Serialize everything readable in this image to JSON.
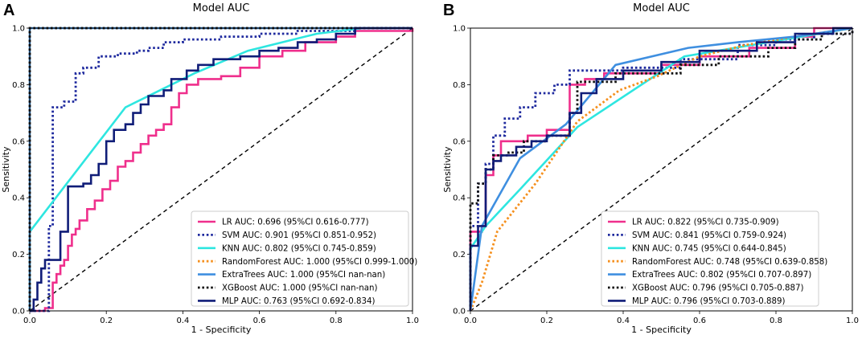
{
  "chart_data": [
    {
      "type": "line",
      "panel_label": "A",
      "title": "Model AUC",
      "xlabel": "1 - Specificity",
      "ylabel": "Sensitivity",
      "xlim": [
        0,
        1
      ],
      "ylim": [
        0,
        1
      ],
      "xticks": [
        "0.0",
        "0.2",
        "0.4",
        "0.6",
        "0.8",
        "1.0"
      ],
      "yticks": [
        "0.0",
        "0.2",
        "0.4",
        "0.6",
        "0.8",
        "1.0"
      ],
      "legend_position": "lower-right",
      "series": [
        {
          "name": "LR",
          "legend": "LR AUC: 0.696 (95%CI 0.616-0.777)",
          "color": "#ef2f8c",
          "dash": "solid",
          "step": true,
          "points": [
            [
              0,
              0
            ],
            [
              0.04,
              0.01
            ],
            [
              0.06,
              0.1
            ],
            [
              0.07,
              0.13
            ],
            [
              0.08,
              0.16
            ],
            [
              0.09,
              0.18
            ],
            [
              0.1,
              0.23
            ],
            [
              0.11,
              0.27
            ],
            [
              0.12,
              0.29
            ],
            [
              0.13,
              0.32
            ],
            [
              0.15,
              0.36
            ],
            [
              0.17,
              0.39
            ],
            [
              0.19,
              0.43
            ],
            [
              0.21,
              0.46
            ],
            [
              0.23,
              0.51
            ],
            [
              0.25,
              0.53
            ],
            [
              0.27,
              0.56
            ],
            [
              0.29,
              0.59
            ],
            [
              0.31,
              0.62
            ],
            [
              0.33,
              0.64
            ],
            [
              0.35,
              0.66
            ],
            [
              0.37,
              0.72
            ],
            [
              0.39,
              0.77
            ],
            [
              0.41,
              0.8
            ],
            [
              0.44,
              0.82
            ],
            [
              0.5,
              0.83
            ],
            [
              0.55,
              0.86
            ],
            [
              0.6,
              0.9
            ],
            [
              0.66,
              0.92
            ],
            [
              0.72,
              0.95
            ],
            [
              0.8,
              0.97
            ],
            [
              0.85,
              0.99
            ],
            [
              1,
              1
            ]
          ]
        },
        {
          "name": "SVM",
          "legend": "SVM AUC: 0.901 (95%CI 0.851-0.952)",
          "color": "#1f2a9e",
          "dash": "dot",
          "step": true,
          "points": [
            [
              0,
              0
            ],
            [
              0.05,
              0.3
            ],
            [
              0.06,
              0.72
            ],
            [
              0.09,
              0.74
            ],
            [
              0.12,
              0.84
            ],
            [
              0.14,
              0.86
            ],
            [
              0.18,
              0.9
            ],
            [
              0.23,
              0.91
            ],
            [
              0.28,
              0.92
            ],
            [
              0.31,
              0.93
            ],
            [
              0.35,
              0.95
            ],
            [
              0.4,
              0.96
            ],
            [
              0.5,
              0.97
            ],
            [
              0.6,
              0.98
            ],
            [
              0.7,
              0.99
            ],
            [
              0.85,
              1
            ],
            [
              1,
              1
            ]
          ]
        },
        {
          "name": "KNN",
          "legend": "KNN AUC: 0.802 (95%CI 0.745-0.859)",
          "color": "#2ee6e0",
          "dash": "solid",
          "step": false,
          "points": [
            [
              0,
              0
            ],
            [
              0,
              0.28
            ],
            [
              0.25,
              0.72
            ],
            [
              0.43,
              0.84
            ],
            [
              0.57,
              0.92
            ],
            [
              0.75,
              0.98
            ],
            [
              0.87,
              1
            ],
            [
              1,
              1
            ]
          ]
        },
        {
          "name": "RandomForest",
          "legend": "RandomForest AUC: 1.000 (95%CI 0.999-1.000)",
          "color": "#f5901e",
          "dash": "dot",
          "step": false,
          "points": [
            [
              0,
              0
            ],
            [
              0,
              1
            ],
            [
              1,
              1
            ]
          ]
        },
        {
          "name": "ExtraTrees",
          "legend": "ExtraTrees AUC: 1.000 (95%CI nan-nan)",
          "color": "#3f8fe0",
          "dash": "solid",
          "step": false,
          "points": [
            [
              0,
              0
            ],
            [
              0,
              1
            ],
            [
              1,
              1
            ]
          ]
        },
        {
          "name": "XGBoost",
          "legend": "XGBoost AUC: 1.000 (95%CI nan-nan)",
          "color": "#111111",
          "dash": "dot",
          "step": false,
          "points": [
            [
              0,
              0
            ],
            [
              0,
              1
            ],
            [
              1,
              1
            ]
          ]
        },
        {
          "name": "MLP",
          "legend": "MLP AUC: 0.763 (95%CI 0.692-0.834)",
          "color": "#101d78",
          "dash": "solid",
          "step": true,
          "points": [
            [
              0,
              0
            ],
            [
              0.01,
              0.04
            ],
            [
              0.02,
              0.1
            ],
            [
              0.03,
              0.15
            ],
            [
              0.04,
              0.18
            ],
            [
              0.08,
              0.28
            ],
            [
              0.1,
              0.44
            ],
            [
              0.14,
              0.45
            ],
            [
              0.16,
              0.48
            ],
            [
              0.18,
              0.52
            ],
            [
              0.2,
              0.6
            ],
            [
              0.22,
              0.64
            ],
            [
              0.25,
              0.66
            ],
            [
              0.27,
              0.7
            ],
            [
              0.29,
              0.73
            ],
            [
              0.31,
              0.76
            ],
            [
              0.35,
              0.78
            ],
            [
              0.37,
              0.82
            ],
            [
              0.41,
              0.85
            ],
            [
              0.44,
              0.87
            ],
            [
              0.48,
              0.89
            ],
            [
              0.55,
              0.9
            ],
            [
              0.6,
              0.92
            ],
            [
              0.65,
              0.93
            ],
            [
              0.7,
              0.95
            ],
            [
              0.75,
              0.96
            ],
            [
              0.8,
              0.98
            ],
            [
              0.85,
              1
            ],
            [
              1,
              1
            ]
          ]
        }
      ]
    },
    {
      "type": "line",
      "panel_label": "B",
      "title": "Model AUC",
      "xlabel": "1 - Specificity",
      "ylabel": "Sensitivity",
      "xlim": [
        0,
        1
      ],
      "ylim": [
        0,
        1
      ],
      "xticks": [
        "0.0",
        "0.2",
        "0.4",
        "0.6",
        "0.8",
        "1.0"
      ],
      "yticks": [
        "0.0",
        "0.2",
        "0.4",
        "0.6",
        "0.8",
        "1.0"
      ],
      "legend_position": "lower-right",
      "series": [
        {
          "name": "LR",
          "legend": "LR AUC: 0.822 (95%CI 0.735-0.909)",
          "color": "#ef2f8c",
          "dash": "solid",
          "step": true,
          "points": [
            [
              0,
              0
            ],
            [
              0,
              0.28
            ],
            [
              0.03,
              0.3
            ],
            [
              0.04,
              0.48
            ],
            [
              0.06,
              0.55
            ],
            [
              0.08,
              0.6
            ],
            [
              0.15,
              0.62
            ],
            [
              0.2,
              0.64
            ],
            [
              0.26,
              0.8
            ],
            [
              0.3,
              0.82
            ],
            [
              0.35,
              0.84
            ],
            [
              0.5,
              0.87
            ],
            [
              0.6,
              0.9
            ],
            [
              0.73,
              0.93
            ],
            [
              0.85,
              0.97
            ],
            [
              0.9,
              1
            ],
            [
              1,
              1
            ]
          ]
        },
        {
          "name": "SVM",
          "legend": "SVM AUC: 0.841 (95%CI 0.759-0.924)",
          "color": "#1f2a9e",
          "dash": "dot",
          "step": true,
          "points": [
            [
              0,
              0
            ],
            [
              0,
              0.3
            ],
            [
              0.02,
              0.45
            ],
            [
              0.04,
              0.52
            ],
            [
              0.06,
              0.62
            ],
            [
              0.09,
              0.68
            ],
            [
              0.13,
              0.72
            ],
            [
              0.17,
              0.77
            ],
            [
              0.22,
              0.8
            ],
            [
              0.26,
              0.85
            ],
            [
              0.4,
              0.86
            ],
            [
              0.55,
              0.89
            ],
            [
              0.7,
              0.94
            ],
            [
              0.8,
              0.96
            ],
            [
              0.9,
              0.98
            ],
            [
              1,
              1
            ]
          ]
        },
        {
          "name": "KNN",
          "legend": "KNN AUC: 0.745 (95%CI 0.644-0.845)",
          "color": "#2ee6e0",
          "dash": "solid",
          "step": false,
          "points": [
            [
              0,
              0
            ],
            [
              0,
              0.22
            ],
            [
              0.04,
              0.3
            ],
            [
              0.13,
              0.43
            ],
            [
              0.28,
              0.65
            ],
            [
              0.56,
              0.9
            ],
            [
              0.78,
              0.95
            ],
            [
              1,
              1
            ]
          ]
        },
        {
          "name": "RandomForest",
          "legend": "RandomForest AUC: 0.748 (95%CI 0.639-0.858)",
          "color": "#f5901e",
          "dash": "dot",
          "step": false,
          "points": [
            [
              0,
              0
            ],
            [
              0.03,
              0.1
            ],
            [
              0.07,
              0.28
            ],
            [
              0.17,
              0.45
            ],
            [
              0.28,
              0.67
            ],
            [
              0.39,
              0.78
            ],
            [
              0.49,
              0.83
            ],
            [
              0.6,
              0.9
            ],
            [
              0.72,
              0.94
            ],
            [
              0.85,
              0.97
            ],
            [
              1,
              1
            ]
          ]
        },
        {
          "name": "ExtraTrees",
          "legend": "ExtraTrees AUC: 0.802 (95%CI 0.707-0.897)",
          "color": "#3f8fe0",
          "dash": "solid",
          "step": false,
          "points": [
            [
              0,
              0
            ],
            [
              0.03,
              0.3
            ],
            [
              0.13,
              0.54
            ],
            [
              0.25,
              0.66
            ],
            [
              0.38,
              0.87
            ],
            [
              0.57,
              0.93
            ],
            [
              0.7,
              0.95
            ],
            [
              0.85,
              0.97
            ],
            [
              1,
              1
            ]
          ]
        },
        {
          "name": "XGBoost",
          "legend": "XGBoost AUC: 0.796 (95%CI 0.705-0.887)",
          "color": "#111111",
          "dash": "dot",
          "step": true,
          "points": [
            [
              0,
              0
            ],
            [
              0,
              0.38
            ],
            [
              0.02,
              0.45
            ],
            [
              0.04,
              0.5
            ],
            [
              0.06,
              0.55
            ],
            [
              0.1,
              0.56
            ],
            [
              0.14,
              0.6
            ],
            [
              0.2,
              0.62
            ],
            [
              0.26,
              0.7
            ],
            [
              0.28,
              0.81
            ],
            [
              0.38,
              0.84
            ],
            [
              0.55,
              0.87
            ],
            [
              0.65,
              0.9
            ],
            [
              0.78,
              0.93
            ],
            [
              0.85,
              0.96
            ],
            [
              0.92,
              0.98
            ],
            [
              1,
              1
            ]
          ]
        },
        {
          "name": "MLP",
          "legend": "MLP AUC: 0.796 (95%CI 0.703-0.889)",
          "color": "#101d78",
          "dash": "solid",
          "step": true,
          "points": [
            [
              0,
              0
            ],
            [
              0,
              0.23
            ],
            [
              0.02,
              0.3
            ],
            [
              0.04,
              0.5
            ],
            [
              0.06,
              0.53
            ],
            [
              0.08,
              0.55
            ],
            [
              0.12,
              0.58
            ],
            [
              0.16,
              0.6
            ],
            [
              0.2,
              0.62
            ],
            [
              0.26,
              0.7
            ],
            [
              0.29,
              0.77
            ],
            [
              0.33,
              0.82
            ],
            [
              0.4,
              0.85
            ],
            [
              0.5,
              0.88
            ],
            [
              0.6,
              0.92
            ],
            [
              0.75,
              0.95
            ],
            [
              0.85,
              0.98
            ],
            [
              0.95,
              1
            ],
            [
              1,
              1
            ]
          ]
        }
      ]
    }
  ]
}
